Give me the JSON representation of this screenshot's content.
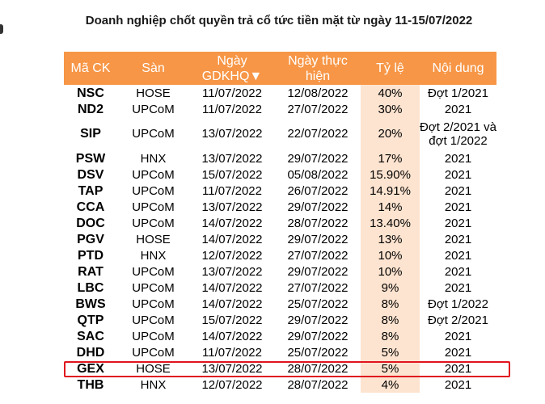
{
  "title": "Doanh nghiệp chốt quyền trả cổ tức tiền mặt từ ngày 11-15/07/2022",
  "table": {
    "headers": [
      "Mã CK",
      "Sàn",
      "Ngày GDKHQ▼",
      "Ngày thực hiện",
      "Tỷ lệ",
      "Nội dung"
    ],
    "rows": [
      {
        "code": "NSC",
        "exchange": "HOSE",
        "ex_date": "11/07/2022",
        "pay_date": "12/08/2022",
        "rate": "40%",
        "content": "Đợt 1/2021"
      },
      {
        "code": "ND2",
        "exchange": "UPCoM",
        "ex_date": "11/07/2022",
        "pay_date": "27/07/2022",
        "rate": "30%",
        "content": "2021"
      },
      {
        "code": "SIP",
        "exchange": "UPCoM",
        "ex_date": "13/07/2022",
        "pay_date": "22/07/2022",
        "rate": "20%",
        "content": "Đợt 2/2021 và đợt 1/2022"
      },
      {
        "code": "PSW",
        "exchange": "HNX",
        "ex_date": "13/07/2022",
        "pay_date": "29/07/2022",
        "rate": "17%",
        "content": "2021"
      },
      {
        "code": "DSV",
        "exchange": "UPCoM",
        "ex_date": "15/07/2022",
        "pay_date": "05/08/2022",
        "rate": "15.90%",
        "content": "2021"
      },
      {
        "code": "TAP",
        "exchange": "UPCoM",
        "ex_date": "11/07/2022",
        "pay_date": "26/07/2022",
        "rate": "14.91%",
        "content": "2021"
      },
      {
        "code": "CCA",
        "exchange": "UPCoM",
        "ex_date": "13/07/2022",
        "pay_date": "29/07/2022",
        "rate": "14%",
        "content": "2021"
      },
      {
        "code": "DOC",
        "exchange": "UPCoM",
        "ex_date": "14/07/2022",
        "pay_date": "28/07/2022",
        "rate": "13.40%",
        "content": "2021"
      },
      {
        "code": "PGV",
        "exchange": "HOSE",
        "ex_date": "14/07/2022",
        "pay_date": "29/07/2022",
        "rate": "13%",
        "content": "2021"
      },
      {
        "code": "PTD",
        "exchange": "HNX",
        "ex_date": "12/07/2022",
        "pay_date": "27/07/2022",
        "rate": "10%",
        "content": "2021"
      },
      {
        "code": "RAT",
        "exchange": "UPCoM",
        "ex_date": "13/07/2022",
        "pay_date": "29/07/2022",
        "rate": "10%",
        "content": "2021"
      },
      {
        "code": "LBC",
        "exchange": "UPCoM",
        "ex_date": "14/07/2022",
        "pay_date": "27/07/2022",
        "rate": "9%",
        "content": "2021"
      },
      {
        "code": "BWS",
        "exchange": "UPCoM",
        "ex_date": "14/07/2022",
        "pay_date": "25/07/2022",
        "rate": "8%",
        "content": "Đợt 1/2022"
      },
      {
        "code": "QTP",
        "exchange": "UPCoM",
        "ex_date": "15/07/2022",
        "pay_date": "29/07/2022",
        "rate": "8%",
        "content": "Đợt 2/2021"
      },
      {
        "code": "SAC",
        "exchange": "UPCoM",
        "ex_date": "14/07/2022",
        "pay_date": "29/07/2022",
        "rate": "8%",
        "content": "2021"
      },
      {
        "code": "DHD",
        "exchange": "UPCoM",
        "ex_date": "11/07/2022",
        "pay_date": "25/07/2022",
        "rate": "5%",
        "content": "2021"
      },
      {
        "code": "GEX",
        "exchange": "HOSE",
        "ex_date": "13/07/2022",
        "pay_date": "28/07/2022",
        "rate": "5%",
        "content": "2021"
      },
      {
        "code": "THB",
        "exchange": "HNX",
        "ex_date": "12/07/2022",
        "pay_date": "28/07/2022",
        "rate": "4%",
        "content": "2021"
      }
    ]
  },
  "colors": {
    "header_bg": "#f79646",
    "rate_column_bg": "#fde4d0",
    "highlight_border": "#e0141e"
  }
}
